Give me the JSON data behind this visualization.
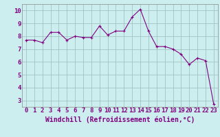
{
  "x": [
    0,
    1,
    2,
    3,
    4,
    5,
    6,
    7,
    8,
    9,
    10,
    11,
    12,
    13,
    14,
    15,
    16,
    17,
    18,
    19,
    20,
    21,
    22,
    23
  ],
  "y": [
    7.7,
    7.7,
    7.5,
    8.3,
    8.3,
    7.7,
    8.0,
    7.9,
    7.9,
    8.8,
    8.1,
    8.4,
    8.4,
    9.5,
    10.1,
    8.4,
    7.2,
    7.2,
    7.0,
    6.6,
    5.8,
    6.3,
    6.1,
    2.7
  ],
  "line_color": "#800080",
  "marker": "+",
  "background_color": "#cceeee",
  "grid_color": "#99bbbb",
  "xlabel": "Windchill (Refroidissement éolien,°C)",
  "xlim": [
    -0.5,
    23.5
  ],
  "ylim": [
    2.5,
    10.5
  ],
  "yticks": [
    3,
    4,
    5,
    6,
    7,
    8,
    9,
    10
  ],
  "xticks": [
    0,
    1,
    2,
    3,
    4,
    5,
    6,
    7,
    8,
    9,
    10,
    11,
    12,
    13,
    14,
    15,
    16,
    17,
    18,
    19,
    20,
    21,
    22,
    23
  ],
  "tick_color": "#800080",
  "label_color": "#800080",
  "axis_color": "#888888",
  "font_size": 6.5,
  "xlabel_fontsize": 7.0,
  "linewidth": 0.8,
  "markersize": 3.0
}
